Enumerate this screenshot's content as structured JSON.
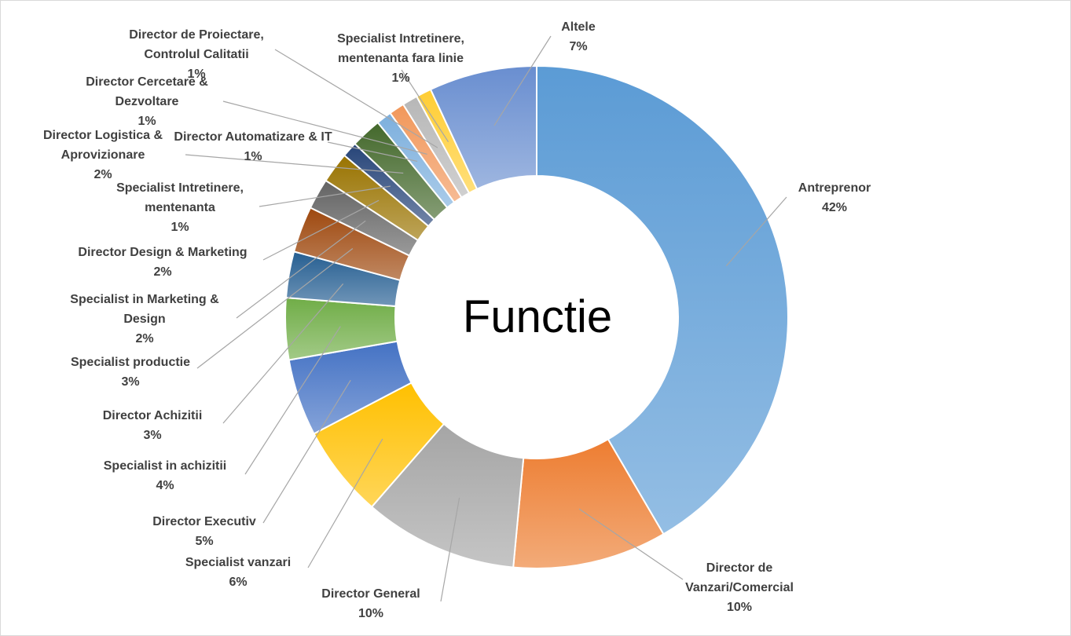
{
  "chart_data": {
    "type": "pie",
    "variant": "donut",
    "title": "Functie",
    "categories": [
      "Antreprenor",
      "Director de Vanzari/Comercial",
      "Director General",
      "Specialist vanzari",
      "Director Executiv",
      "Specialist in achizitii",
      "Director Achizitii",
      "Specialist productie",
      "Specialist in Marketing & Design",
      "Director Design & Marketing",
      "Specialist Intretinere, mentenanta",
      "Director Logistica & Aprovizionare",
      "Director Automatizare & IT",
      "Director Cercetare & Dezvoltare",
      "Director de Proiectare, Controlul Calitatii",
      "Specialist Intretinere, mentenanta fara linie",
      "Altele"
    ],
    "values": [
      42,
      10,
      10,
      6,
      5,
      4,
      3,
      3,
      2,
      2,
      1,
      2,
      1,
      1,
      1,
      1,
      7
    ],
    "value_labels": [
      "42%",
      "10%",
      "10%",
      "6%",
      "5%",
      "4%",
      "3%",
      "3%",
      "2%",
      "2%",
      "1%",
      "2%",
      "1%",
      "1%",
      "1%",
      "1%",
      "7%"
    ],
    "label_lines": [
      [
        "Antreprenor",
        "42%"
      ],
      [
        "Director de",
        "Vanzari/Comercial",
        "10%"
      ],
      [
        "Director General",
        "10%"
      ],
      [
        "Specialist vanzari",
        "6%"
      ],
      [
        "Director Executiv",
        "5%"
      ],
      [
        "Specialist in achizitii",
        "4%"
      ],
      [
        "Director Achizitii",
        "3%"
      ],
      [
        "Specialist productie",
        "3%"
      ],
      [
        "Specialist in Marketing &",
        "Design",
        "2%"
      ],
      [
        "Director Design & Marketing",
        "2%"
      ],
      [
        "Specialist Intretinere,",
        "mentenanta",
        "1%"
      ],
      [
        "Director Logistica &",
        "Aprovizionare",
        "2%"
      ],
      [
        "Director Automatizare & IT",
        "1%"
      ],
      [
        "Director Cercetare &",
        "Dezvoltare",
        "1%"
      ],
      [
        "Director de Proiectare,",
        "Controlul Calitatii",
        "1%"
      ],
      [
        "Specialist Intretinere,",
        "mentenanta fara linie",
        "1%"
      ],
      [
        "Altele",
        "7%"
      ]
    ],
    "colors": [
      "#5b9bd5",
      "#ed7d31",
      "#a5a5a5",
      "#ffc000",
      "#4472c4",
      "#70ad47",
      "#255e91",
      "#9e480e",
      "#636363",
      "#997300",
      "#264478",
      "#43682b",
      "#7cafdd",
      "#f1975a",
      "#b7b7b7",
      "#ffcd33",
      "#698ed0"
    ],
    "legend": "none"
  }
}
